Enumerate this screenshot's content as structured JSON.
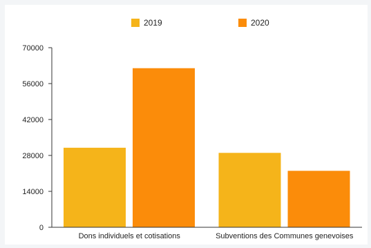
{
  "chart_data": {
    "type": "bar",
    "categories": [
      "Dons individuels et cotisations",
      "Subventions des Communes genevoises"
    ],
    "series": [
      {
        "name": "2019",
        "values": [
          31000,
          29000
        ],
        "color": "#f5b41a"
      },
      {
        "name": "2020",
        "values": [
          62000,
          22000
        ],
        "color": "#fb8c0a"
      }
    ],
    "yticks": [
      0,
      14000,
      28000,
      42000,
      56000,
      70000
    ],
    "ylim": [
      0,
      70000
    ],
    "grid": false,
    "legend_position": "top-center"
  }
}
